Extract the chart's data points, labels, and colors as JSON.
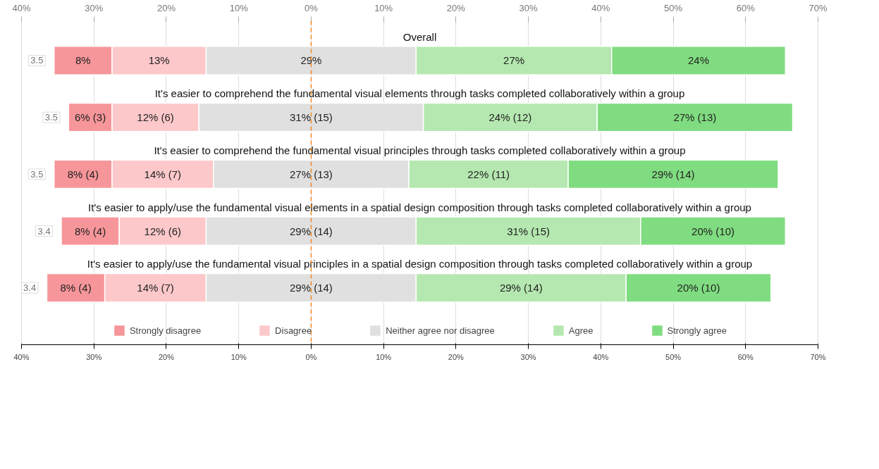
{
  "chart_data": {
    "type": "bar",
    "orientation": "horizontal",
    "categories": [
      "Overall",
      "It's easier to comprehend the fundamental visual elements through tasks completed collaboratively within a group",
      "It's easier to comprehend the fundamental visual principles through tasks completed collaboratively within a group",
      "It's easier to apply/use the fundamental visual elements in a spatial design composition through tasks completed collaboratively within a group",
      "It's easier to apply/use the fundamental visual principles in a spatial design composition through tasks completed collaboratively within a group"
    ],
    "series": [
      {
        "name": "Strongly disagree",
        "color": "#f7969a",
        "values": [
          8,
          6,
          8,
          8,
          8
        ],
        "base": [
          -35.5,
          -33.5,
          -35.5,
          -34.5,
          -36.5
        ],
        "value_labels": [
          "8%",
          "6% (3)",
          "8% (4)",
          "8% (4)",
          "8% (4)"
        ]
      },
      {
        "name": "Disagree",
        "color": "#fcc8ca",
        "values": [
          13,
          12,
          14,
          12,
          14
        ],
        "base": [
          -27.5,
          -27.5,
          -27.5,
          -26.5,
          -28.5
        ],
        "value_labels": [
          "13%",
          "12% (6)",
          "14% (7)",
          "12% (6)",
          "14% (7)"
        ]
      },
      {
        "name": "Neither agree nor disagree",
        "color": "#e0e0e0",
        "values": [
          29,
          31,
          27,
          29,
          29
        ],
        "base": [
          -14.5,
          -15.5,
          -13.5,
          -14.5,
          -14.5
        ],
        "value_labels": [
          "29%",
          "31% (15)",
          "27% (13)",
          "29% (14)",
          "29% (14)"
        ]
      },
      {
        "name": "Agree",
        "color": "#b5e8b0",
        "values": [
          27,
          24,
          22,
          31,
          29
        ],
        "base": [
          14.5,
          15.5,
          13.5,
          14.5,
          14.5
        ],
        "value_labels": [
          "27%",
          "24% (12)",
          "22% (11)",
          "31% (15)",
          "29% (14)"
        ]
      },
      {
        "name": "Strongly agree",
        "color": "#80dc80",
        "values": [
          24,
          27,
          29,
          20,
          20
        ],
        "base": [
          41.5,
          39.5,
          35.5,
          45.5,
          43.5
        ],
        "value_labels": [
          "24%",
          "27% (13)",
          "29% (14)",
          "20% (10)",
          "20% (10)"
        ]
      }
    ],
    "annotations": [
      "3.5",
      "3.5",
      "3.5",
      "3.4",
      "3.4"
    ],
    "xlim": [
      -40,
      70
    ],
    "xticks": [
      {
        "value": -40,
        "label": "40%"
      },
      {
        "value": -30,
        "label": "30%"
      },
      {
        "value": -20,
        "label": "20%"
      },
      {
        "value": -10,
        "label": "10%"
      },
      {
        "value": 0,
        "label": "0%"
      },
      {
        "value": 10,
        "label": "10%"
      },
      {
        "value": 20,
        "label": "20%"
      },
      {
        "value": 30,
        "label": "30%"
      },
      {
        "value": 40,
        "label": "40%"
      },
      {
        "value": 50,
        "label": "50%"
      },
      {
        "value": 60,
        "label": "60%"
      },
      {
        "value": 70,
        "label": "70%"
      }
    ],
    "ref_lines": [
      {
        "axis": "x",
        "value": 0,
        "color": "#f08a24",
        "line_style": "dashed"
      }
    ],
    "grid": "x",
    "legend": "bottom"
  }
}
